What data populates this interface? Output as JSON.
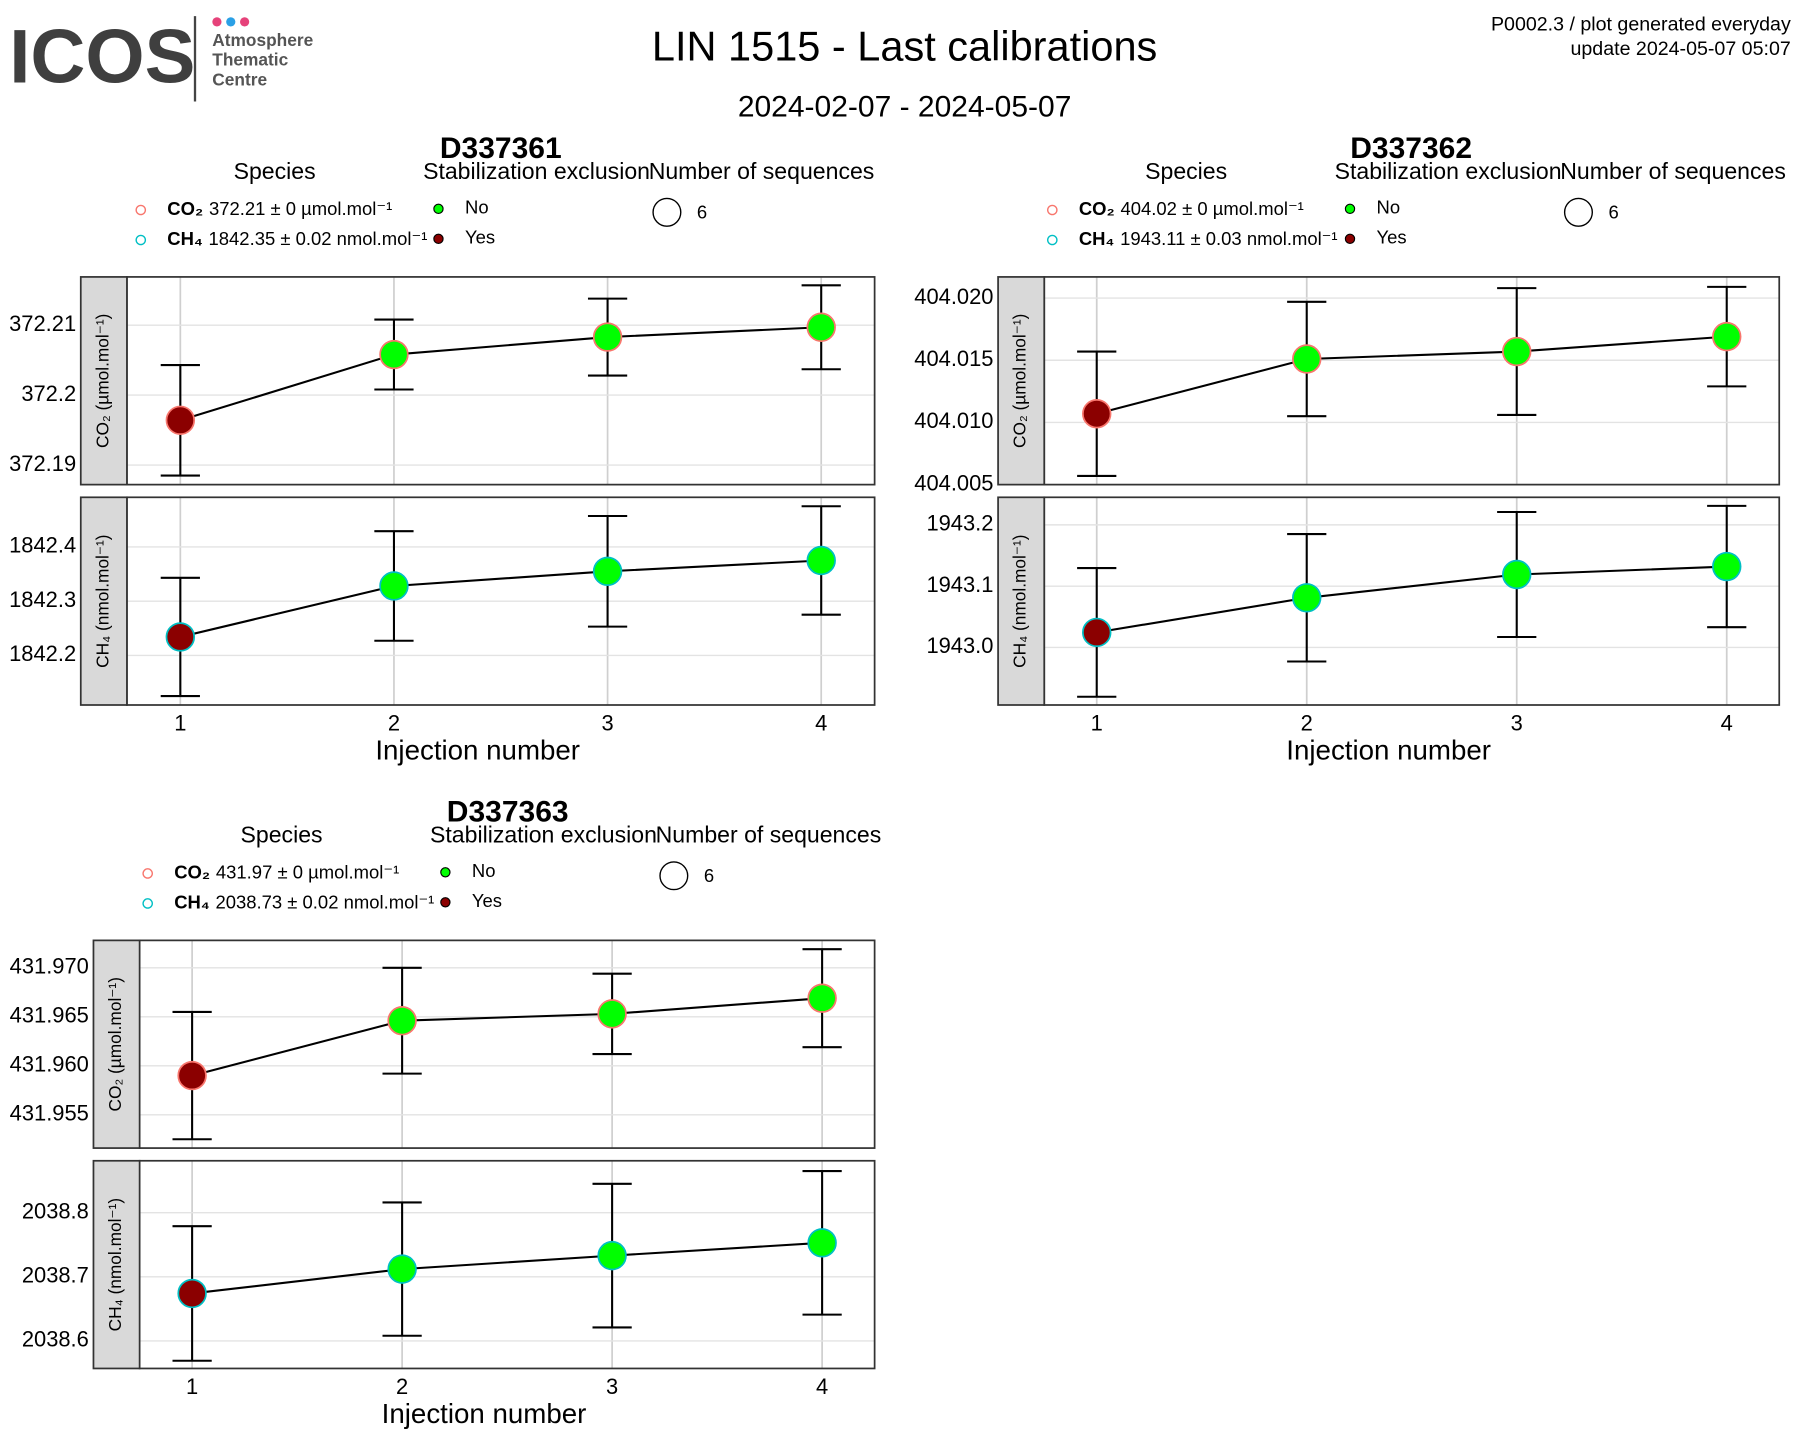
{
  "header": {
    "logo": "ICOS",
    "org": [
      "Atmosphere",
      "Thematic",
      "Centre"
    ],
    "title": "LIN 1515 - Last calibrations",
    "subtitle": "2024-02-07 - 2024-05-07",
    "note": [
      "P0002.3 / plot generated everyday",
      "update  2024-05-07 05:07"
    ]
  },
  "chart_data": [
    {
      "type": "line",
      "title": "D337361",
      "x": [
        1,
        2,
        3,
        4
      ],
      "xlim": [
        0.75,
        4.25
      ],
      "xticks": [
        1,
        2,
        3,
        4
      ],
      "x_label": "Injection number",
      "species_legend": {
        "title": "Species",
        "items": [
          {
            "species": "CO₂",
            "text": "372.21 ± 0 µmol.mol⁻¹",
            "color": "#f8766d"
          },
          {
            "species": "CH₄",
            "text": "1842.35 ± 0.02 nmol.mol⁻¹",
            "color": "#00bfc4"
          }
        ]
      },
      "exclusion_legend": {
        "title": "Stabilization exclusion",
        "items": [
          {
            "label": "No",
            "color": "#00ff00"
          },
          {
            "label": "Yes",
            "color": "#8b0000"
          }
        ]
      },
      "size_legend": {
        "title": "Number of sequences",
        "value": 6
      },
      "panels": [
        {
          "strip": "CO₂ (µmol.mol⁻¹)",
          "species": 0,
          "ylim": [
            372.1872,
            372.2169
          ],
          "yticks": [
            372.19,
            372.2,
            372.21
          ],
          "values": [
            372.1964,
            372.2058,
            372.2083,
            372.2097
          ],
          "errors": [
            0.0079,
            0.005,
            0.0055,
            0.006
          ],
          "exclusion": [
            "Yes",
            "No",
            "No",
            "No"
          ]
        },
        {
          "strip": "CH₄ (nmol.mol⁻¹)",
          "species": 1,
          "ylim": [
            1842.1085,
            1842.4915
          ],
          "yticks": [
            1842.2,
            1842.3,
            1842.4
          ],
          "values": [
            1842.234,
            1842.328,
            1842.355,
            1842.375
          ],
          "errors": [
            0.109,
            0.101,
            0.102,
            0.1
          ],
          "exclusion": [
            "Yes",
            "No",
            "No",
            "No"
          ]
        }
      ]
    },
    {
      "type": "line",
      "title": "D337362",
      "x": [
        1,
        2,
        3,
        4
      ],
      "xlim": [
        0.75,
        4.25
      ],
      "xticks": [
        1,
        2,
        3,
        4
      ],
      "x_label": "Injection number",
      "species_legend": {
        "title": "Species",
        "items": [
          {
            "species": "CO₂",
            "text": "404.02 ± 0 µmol.mol⁻¹",
            "color": "#f8766d"
          },
          {
            "species": "CH₄",
            "text": "1943.11 ± 0.03 nmol.mol⁻¹",
            "color": "#00bfc4"
          }
        ]
      },
      "exclusion_legend": {
        "title": "Stabilization exclusion",
        "items": [
          {
            "label": "No",
            "color": "#00ff00"
          },
          {
            "label": "Yes",
            "color": "#8b0000"
          }
        ]
      },
      "size_legend": {
        "title": "Number of sequences",
        "value": 6
      },
      "panels": [
        {
          "strip": "CO₂ (µmol.mol⁻¹)",
          "species": 0,
          "ylim": [
            404.005,
            404.0217
          ],
          "yticks": [
            404.005,
            404.01,
            404.015,
            404.02
          ],
          "ytick_labels": [
            "404.005",
            "404.010",
            "404.015",
            "404.020"
          ],
          "values": [
            404.0107,
            404.0151,
            404.0157,
            404.0169
          ],
          "errors": [
            0.005,
            0.0046,
            0.0051,
            0.004
          ],
          "exclusion": [
            "Yes",
            "No",
            "No",
            "No"
          ]
        },
        {
          "strip": "CH₄ (nmol.mol⁻¹)",
          "species": 1,
          "ylim": [
            1942.906,
            1943.245
          ],
          "yticks": [
            {
              "value": 1943,
              "label": "1943.0"
            },
            1943.1,
            1943.2
          ],
          "values": [
            1943.0245,
            1943.081,
            1943.119,
            1943.132
          ],
          "errors": [
            0.105,
            0.104,
            0.102,
            0.099
          ],
          "exclusion": [
            "Yes",
            "No",
            "No",
            "No"
          ]
        }
      ]
    },
    {
      "type": "line",
      "title": "D337363",
      "x": [
        1,
        2,
        3,
        4
      ],
      "xlim": [
        0.75,
        4.25
      ],
      "xticks": [
        1,
        2,
        3,
        4
      ],
      "x_label": "Injection number",
      "species_legend": {
        "title": "Species",
        "items": [
          {
            "species": "CO₂",
            "text": "431.97 ± 0 µmol.mol⁻¹",
            "color": "#f8766d"
          },
          {
            "species": "CH₄",
            "text": "2038.73 ± 0.02 nmol.mol⁻¹",
            "color": "#00bfc4"
          }
        ]
      },
      "exclusion_legend": {
        "title": "Stabilization exclusion",
        "items": [
          {
            "label": "No",
            "color": "#00ff00"
          },
          {
            "label": "Yes",
            "color": "#8b0000"
          }
        ]
      },
      "size_legend": {
        "title": "Number of sequences",
        "value": 6
      },
      "panels": [
        {
          "strip": "CO₂ (µmol.mol⁻¹)",
          "species": 0,
          "ylim": [
            431.9516,
            431.9728
          ],
          "yticks": [
            431.955,
            {
              "value": 431.96,
              "label": "431.960"
            },
            431.965,
            {
              "value": 431.97,
              "label": "431.970"
            }
          ],
          "values": [
            431.959,
            431.9646,
            431.9653,
            431.9669
          ],
          "errors": [
            0.0065,
            0.0054,
            0.0041,
            0.005
          ],
          "exclusion": [
            "Yes",
            "No",
            "No",
            "No"
          ]
        },
        {
          "strip": "CH₄ (nmol.mol⁻¹)",
          "species": 1,
          "ylim": [
            2038.557,
            2038.881
          ],
          "yticks": [
            2038.6,
            2038.7,
            2038.8
          ],
          "values": [
            2038.674,
            2038.712,
            2038.733,
            2038.753
          ],
          "errors": [
            0.105,
            0.104,
            0.112,
            0.112
          ],
          "exclusion": [
            "Yes",
            "No",
            "No",
            "No"
          ]
        }
      ]
    }
  ]
}
